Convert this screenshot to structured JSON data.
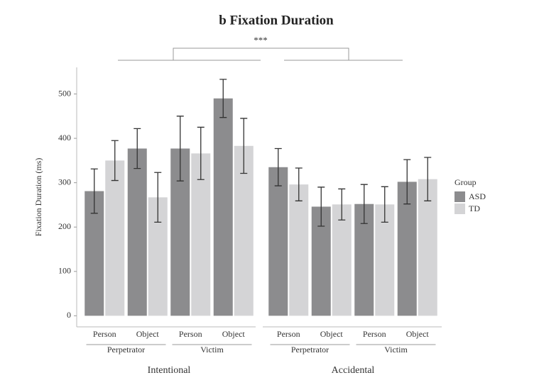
{
  "chart_data": {
    "type": "bar",
    "title": "b Fixation Duration",
    "annotation": "***",
    "ylabel": "Fixation Duration (ms)",
    "legend_title": "Group",
    "ylim": [
      -25,
      560
    ],
    "yticks": [
      0,
      100,
      200,
      300,
      400,
      500
    ],
    "panels": [
      "Intentional",
      "Accidental"
    ],
    "subgroups": [
      "Perpetrator",
      "Victim",
      "Perpetrator",
      "Victim"
    ],
    "categories": [
      "Person",
      "Object",
      "Person",
      "Object",
      "Person",
      "Object",
      "Person",
      "Object"
    ],
    "series": [
      {
        "name": "ASD",
        "color": "#8c8c8e",
        "values": [
          281,
          377,
          377,
          490,
          335,
          246,
          252,
          302
        ],
        "errors": [
          50,
          45,
          73,
          43,
          42,
          44,
          44,
          50
        ]
      },
      {
        "name": "TD",
        "color": "#d4d4d6",
        "values": [
          350,
          267,
          366,
          383,
          296,
          251,
          251,
          308
        ],
        "errors": [
          45,
          56,
          59,
          62,
          37,
          35,
          40,
          49
        ]
      }
    ]
  }
}
